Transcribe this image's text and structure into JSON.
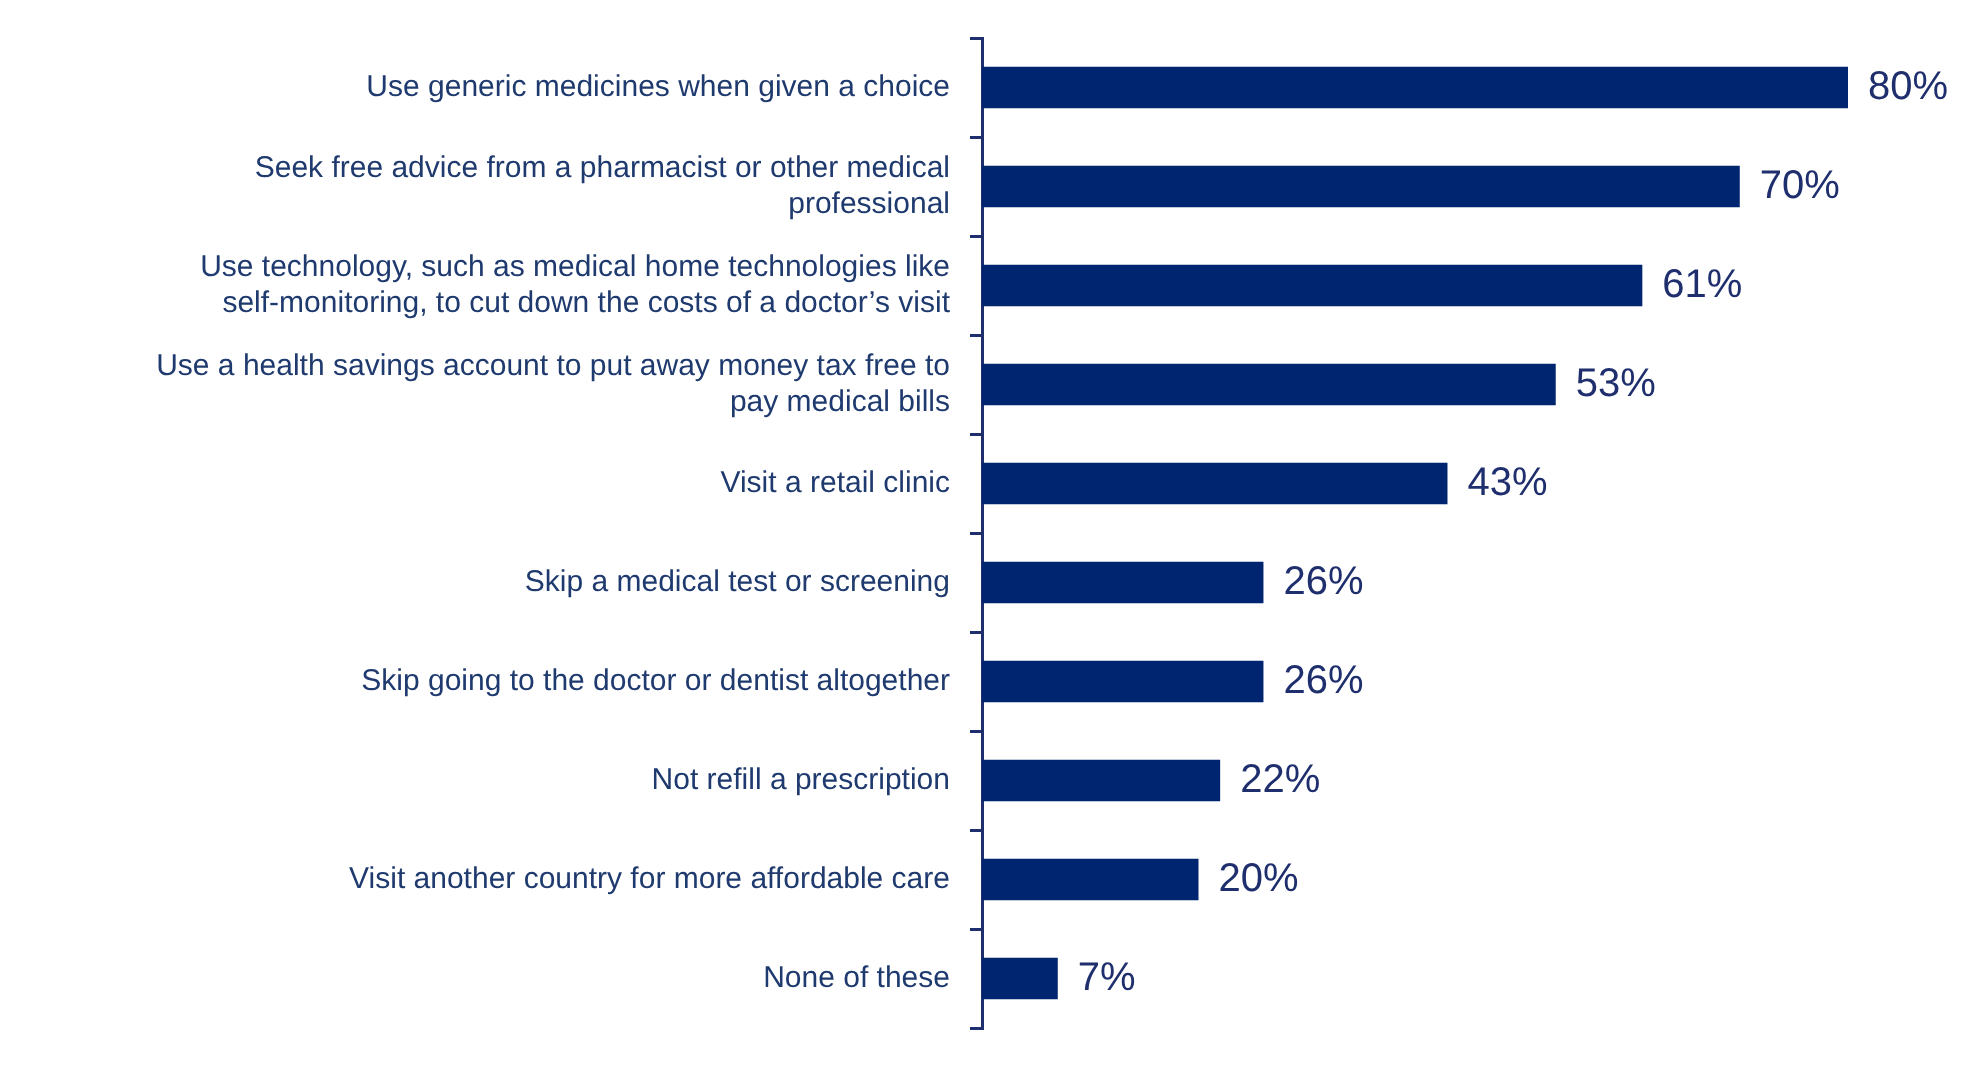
{
  "chart_data": {
    "type": "bar",
    "orientation": "horizontal",
    "categories": [
      "Use generic medicines when given a choice",
      "Seek free advice from a pharmacist or other medical professional",
      "Use technology, such as medical home technologies like self-monitoring, to cut down the costs of a doctor’s visit",
      "Use a health savings account to put away money tax free to pay medical bills",
      "Visit a retail clinic",
      "Skip a medical test or screening",
      "Skip going to the doctor or dentist altogether",
      "Not refill a prescription",
      "Visit another country for more affordable care",
      "None of these"
    ],
    "values": [
      80,
      70,
      61,
      53,
      43,
      26,
      26,
      22,
      20,
      7
    ],
    "value_labels": [
      "80%",
      "70%",
      "61%",
      "53%",
      "43%",
      "26%",
      "26%",
      "22%",
      "20%",
      "7%"
    ],
    "color": "#002570",
    "tick_labels": "y"
  }
}
